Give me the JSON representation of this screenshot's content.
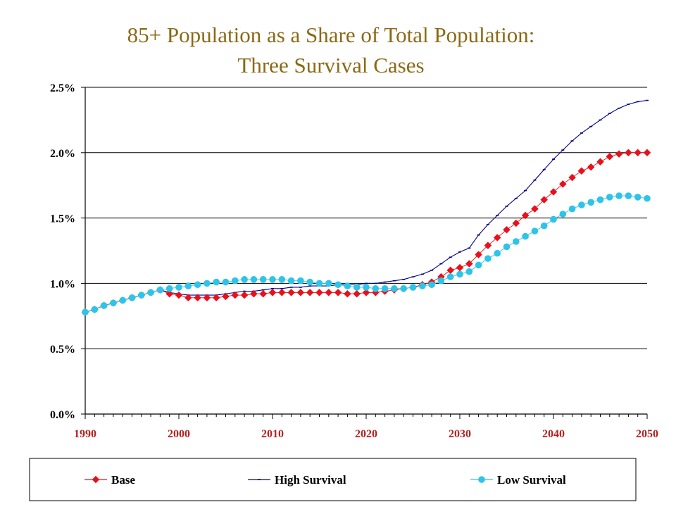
{
  "title_lines": [
    "85+ Population as a Share of Total Population:",
    "Three Survival Cases"
  ],
  "chart_data": {
    "type": "line",
    "title": "85+ Population as a Share of Total Population: Three Survival Cases",
    "xlim": [
      1990,
      2050
    ],
    "ylim": [
      0.0,
      2.5
    ],
    "x_ticks": [
      1990,
      2000,
      2010,
      2020,
      2030,
      2040,
      2050
    ],
    "x_tick_labels": [
      "1990",
      "2000",
      "2010",
      "2020",
      "2030",
      "2040",
      "2050"
    ],
    "y_ticks": [
      0.0,
      0.5,
      1.0,
      1.5,
      2.0,
      2.5
    ],
    "y_tick_labels": [
      "0.0%",
      "0.5%",
      "1.0%",
      "1.5%",
      "2.0%",
      "2.5%"
    ],
    "grid": "horizontal",
    "legend": "bottom",
    "series": [
      {
        "name": "Base",
        "color": "#E8101A",
        "marker": "diamond",
        "x": [
          1990,
          1991,
          1992,
          1993,
          1994,
          1995,
          1996,
          1997,
          1998,
          1999,
          2000,
          2001,
          2002,
          2003,
          2004,
          2005,
          2006,
          2007,
          2008,
          2009,
          2010,
          2011,
          2012,
          2013,
          2014,
          2015,
          2016,
          2017,
          2018,
          2019,
          2020,
          2021,
          2022,
          2023,
          2024,
          2025,
          2026,
          2027,
          2028,
          2029,
          2030,
          2031,
          2032,
          2033,
          2034,
          2035,
          2036,
          2037,
          2038,
          2039,
          2040,
          2041,
          2042,
          2043,
          2044,
          2045,
          2046,
          2047,
          2048,
          2049,
          2050
        ],
        "values": [
          0.78,
          0.8,
          0.83,
          0.85,
          0.87,
          0.89,
          0.91,
          0.93,
          0.95,
          0.92,
          0.91,
          0.89,
          0.89,
          0.89,
          0.89,
          0.9,
          0.91,
          0.91,
          0.92,
          0.92,
          0.93,
          0.93,
          0.93,
          0.93,
          0.93,
          0.93,
          0.93,
          0.93,
          0.92,
          0.92,
          0.93,
          0.93,
          0.94,
          0.95,
          0.96,
          0.97,
          0.99,
          1.01,
          1.05,
          1.1,
          1.12,
          1.15,
          1.22,
          1.29,
          1.35,
          1.41,
          1.46,
          1.52,
          1.57,
          1.64,
          1.7,
          1.76,
          1.81,
          1.86,
          1.89,
          1.93,
          1.97,
          1.99,
          2.0,
          2.0,
          2.0
        ]
      },
      {
        "name": "High Survival",
        "color": "#00008B",
        "marker": "dash",
        "x": [
          1990,
          1991,
          1992,
          1993,
          1994,
          1995,
          1996,
          1997,
          1998,
          1999,
          2000,
          2001,
          2002,
          2003,
          2004,
          2005,
          2006,
          2007,
          2008,
          2009,
          2010,
          2011,
          2012,
          2013,
          2014,
          2015,
          2016,
          2017,
          2018,
          2019,
          2020,
          2021,
          2022,
          2023,
          2024,
          2025,
          2026,
          2027,
          2028,
          2029,
          2030,
          2031,
          2032,
          2033,
          2034,
          2035,
          2036,
          2037,
          2038,
          2039,
          2040,
          2041,
          2042,
          2043,
          2044,
          2045,
          2046,
          2047,
          2048,
          2049,
          2050
        ],
        "values": [
          0.78,
          0.8,
          0.83,
          0.85,
          0.87,
          0.89,
          0.91,
          0.93,
          0.95,
          0.93,
          0.92,
          0.91,
          0.91,
          0.91,
          0.91,
          0.92,
          0.93,
          0.94,
          0.94,
          0.95,
          0.96,
          0.96,
          0.97,
          0.97,
          0.98,
          0.98,
          0.98,
          0.99,
          0.99,
          0.99,
          1.0,
          1.0,
          1.01,
          1.02,
          1.03,
          1.05,
          1.07,
          1.1,
          1.15,
          1.2,
          1.24,
          1.27,
          1.37,
          1.45,
          1.52,
          1.59,
          1.65,
          1.71,
          1.79,
          1.87,
          1.95,
          2.02,
          2.09,
          2.15,
          2.2,
          2.25,
          2.3,
          2.34,
          2.37,
          2.39,
          2.4
        ]
      },
      {
        "name": "Low Survival",
        "color": "#2EC4E8",
        "marker": "circle",
        "x": [
          1990,
          1991,
          1992,
          1993,
          1994,
          1995,
          1996,
          1997,
          1998,
          1999,
          2000,
          2001,
          2002,
          2003,
          2004,
          2005,
          2006,
          2007,
          2008,
          2009,
          2010,
          2011,
          2012,
          2013,
          2014,
          2015,
          2016,
          2017,
          2018,
          2019,
          2020,
          2021,
          2022,
          2023,
          2024,
          2025,
          2026,
          2027,
          2028,
          2029,
          2030,
          2031,
          2032,
          2033,
          2034,
          2035,
          2036,
          2037,
          2038,
          2039,
          2040,
          2041,
          2042,
          2043,
          2044,
          2045,
          2046,
          2047,
          2048,
          2049,
          2050
        ],
        "values": [
          0.78,
          0.8,
          0.83,
          0.85,
          0.87,
          0.89,
          0.91,
          0.93,
          0.95,
          0.96,
          0.97,
          0.98,
          0.99,
          1.0,
          1.01,
          1.01,
          1.02,
          1.03,
          1.03,
          1.03,
          1.03,
          1.03,
          1.02,
          1.02,
          1.01,
          1.0,
          1.0,
          0.99,
          0.98,
          0.97,
          0.97,
          0.96,
          0.96,
          0.96,
          0.96,
          0.97,
          0.98,
          0.99,
          1.02,
          1.05,
          1.07,
          1.09,
          1.14,
          1.19,
          1.23,
          1.28,
          1.32,
          1.36,
          1.4,
          1.44,
          1.49,
          1.53,
          1.57,
          1.6,
          1.62,
          1.64,
          1.66,
          1.67,
          1.67,
          1.66,
          1.65
        ]
      }
    ]
  }
}
